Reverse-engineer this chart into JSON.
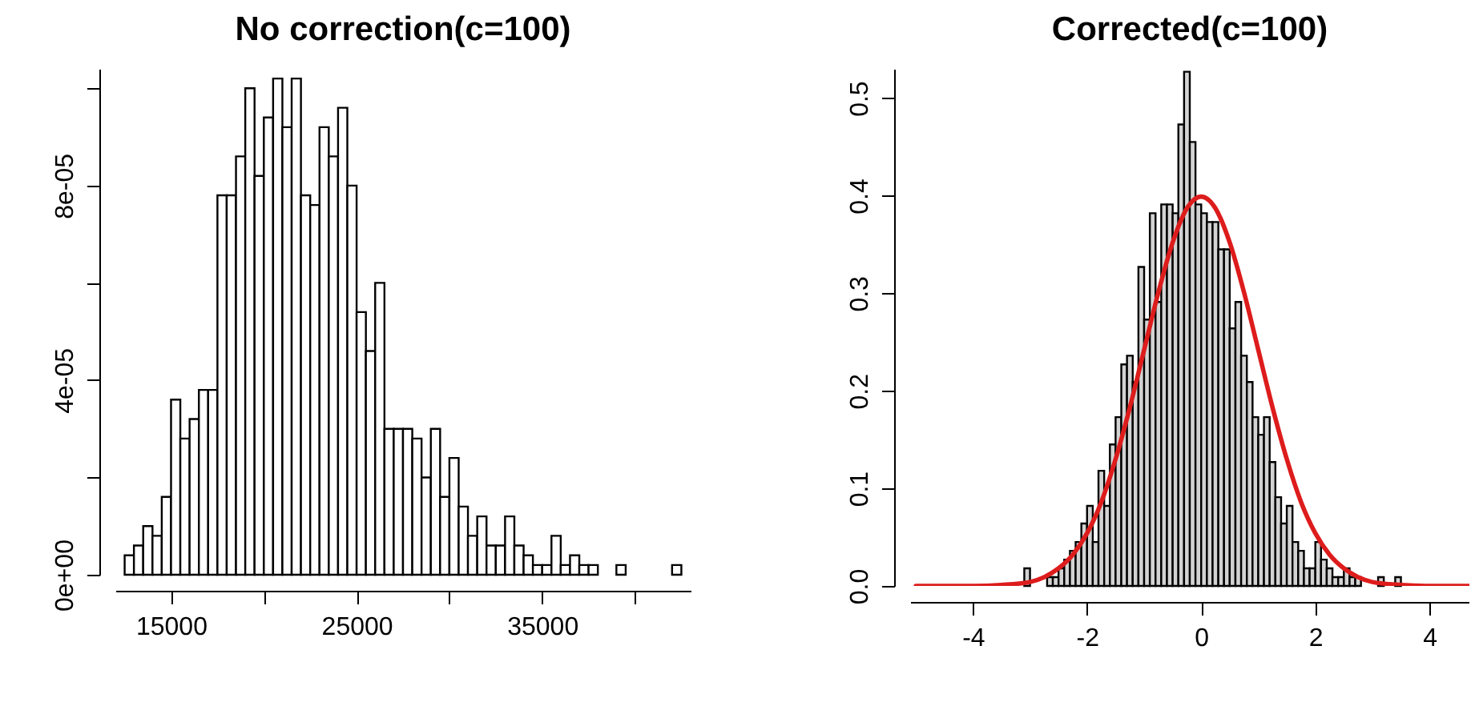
{
  "chart_data": [
    {
      "type": "histogram",
      "title": "No correction(c=100)",
      "bins": [
        12500,
        13000,
        13500,
        14000,
        14500,
        15000,
        15500,
        16000,
        16500,
        17000,
        17500,
        18000,
        18500,
        19000,
        19500,
        20000,
        20500,
        21000,
        21500,
        22000,
        22500,
        23000,
        23500,
        24000,
        24500,
        25000,
        25500,
        26000,
        26500,
        27000,
        27500,
        28000,
        28500,
        29000,
        29500,
        30000,
        30500,
        31000,
        31500,
        32000,
        32500,
        33000,
        33500,
        34000,
        34500,
        35000,
        35500,
        36000,
        36500,
        37000,
        37500,
        38000,
        38500,
        39000,
        39500,
        40000,
        40500,
        41000,
        41500,
        42000,
        42500
      ],
      "series": [
        {
          "color": "#ffffff",
          "values": [
            4e-06,
            6e-06,
            1e-05,
            8e-06,
            1.6e-05,
            3.6e-05,
            2.8e-05,
            3.2e-05,
            3.8e-05,
            3.8e-05,
            7.8e-05,
            7.8e-05,
            8.6e-05,
            0.0001,
            8.2e-05,
            9.4e-05,
            0.000102,
            9.2e-05,
            0.000102,
            7.8e-05,
            7.6e-05,
            9.2e-05,
            8.6e-05,
            9.6e-05,
            8e-05,
            5.4e-05,
            4.6e-05,
            6e-05,
            3e-05,
            3e-05,
            3e-05,
            2.8e-05,
            2e-05,
            3e-05,
            1.6e-05,
            2.4e-05,
            1.4e-05,
            8e-06,
            1.2e-05,
            6e-06,
            6e-06,
            1.2e-05,
            6e-06,
            4e-06,
            2e-06,
            2e-06,
            8e-06,
            2e-06,
            4e-06,
            2e-06,
            2e-06,
            0,
            0,
            2e-06,
            0,
            0,
            0,
            0,
            0,
            2e-06
          ]
        }
      ],
      "xlim": [
        12000,
        43000
      ],
      "ylim": [
        0,
        0.000104
      ],
      "xticks": [
        15000,
        {
          "value": 20000,
          "label": null
        },
        25000,
        {
          "value": 30000,
          "label": null
        },
        35000,
        {
          "value": 40000,
          "label": null
        }
      ],
      "yticks": [
        {
          "value": 0,
          "label": "0e+00"
        },
        {
          "value": 2e-05,
          "label": null
        },
        {
          "value": 4e-05,
          "label": "4e-05"
        },
        {
          "value": 6e-05,
          "label": null
        },
        {
          "value": 8e-05,
          "label": "8e-05"
        },
        {
          "value": 0.0001,
          "label": null
        }
      ]
    },
    {
      "type": "histogram",
      "title": "Corrected(c=100)",
      "bins": [
        -3.1,
        -3.0,
        -2.9,
        -2.8,
        -2.7,
        -2.6,
        -2.5,
        -2.4,
        -2.3,
        -2.2,
        -2.1,
        -2.0,
        -1.9,
        -1.8,
        -1.7,
        -1.6,
        -1.5,
        -1.4,
        -1.3,
        -1.2,
        -1.1,
        -1.0,
        -0.9,
        -0.8,
        -0.7,
        -0.6,
        -0.5,
        -0.4,
        -0.3,
        -0.2,
        -0.1,
        0,
        0.1,
        0.2,
        0.3,
        0.4,
        0.5,
        0.6,
        0.7,
        0.8,
        0.9,
        1.0,
        1.1,
        1.2,
        1.3,
        1.4,
        1.5,
        1.6,
        1.7,
        1.8,
        1.9,
        2.0,
        2.1,
        2.2,
        2.3,
        2.4,
        2.5,
        2.6,
        2.7,
        2.8,
        2.9,
        3.0,
        3.1,
        3.2,
        3.3,
        3.4,
        3.5
      ],
      "series": [
        {
          "color": "#d3d3d3",
          "values": [
            0.018,
            0,
            0,
            0,
            0.009,
            0.009,
            0.018,
            0.027,
            0.036,
            0.045,
            0.064,
            0.082,
            0.045,
            0.118,
            0.082,
            0.145,
            0.173,
            0.227,
            0.236,
            0.209,
            0.327,
            0.273,
            0.382,
            0.291,
            0.391,
            0.391,
            0.382,
            0.473,
            0.527,
            0.455,
            0.391,
            0.382,
            0.373,
            0.373,
            0.345,
            0.345,
            0.264,
            0.291,
            0.236,
            0.209,
            0.173,
            0.155,
            0.173,
            0.127,
            0.091,
            0.064,
            0.082,
            0.045,
            0.036,
            0.018,
            0.018,
            0.045,
            0.027,
            0.018,
            0.009,
            0.009,
            0.018,
            0.009,
            0.009,
            0,
            0,
            0,
            0.009,
            0,
            0,
            0.009
          ]
        },
        {
          "type": "line",
          "color": "#dd1c1c",
          "x": [
            -5,
            -4.5,
            -4,
            -3.5,
            -3,
            -2.75,
            -2.5,
            -2.25,
            -2,
            -1.75,
            -1.5,
            -1.25,
            -1,
            -0.75,
            -0.5,
            -0.25,
            0,
            0.25,
            0.5,
            0.75,
            1,
            1.25,
            1.5,
            1.75,
            2,
            2.25,
            2.5,
            2.75,
            3,
            3.5,
            4,
            4.5,
            4.7
          ],
          "values": [
            0,
            0,
            0,
            0.001,
            0.004,
            0.009,
            0.018,
            0.032,
            0.054,
            0.086,
            0.13,
            0.183,
            0.242,
            0.301,
            0.352,
            0.387,
            0.399,
            0.387,
            0.352,
            0.301,
            0.242,
            0.183,
            0.13,
            0.086,
            0.054,
            0.032,
            0.018,
            0.009,
            0.004,
            0.001,
            0,
            0,
            0
          ]
        }
      ],
      "xlim": [
        -5.1,
        4.7
      ],
      "ylim": [
        0,
        0.53
      ],
      "xticks": [
        -4,
        -2,
        0,
        2,
        4
      ],
      "yticks": [
        {
          "value": 0,
          "label": "0.0"
        },
        {
          "value": 0.1,
          "label": "0.1"
        },
        {
          "value": 0.2,
          "label": "0.2"
        },
        {
          "value": 0.3,
          "label": "0.3"
        },
        {
          "value": 0.4,
          "label": "0.4"
        },
        {
          "value": 0.5,
          "label": "0.5"
        }
      ]
    }
  ]
}
